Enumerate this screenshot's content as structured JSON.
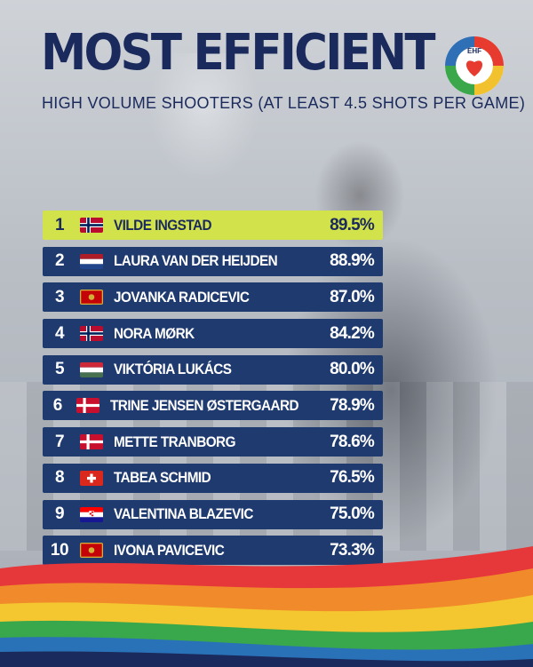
{
  "header": {
    "title": "MOST EFFICIENT",
    "subtitle": "HIGH VOLUME SHOOTERS (AT LEAST 4.5 SHOTS PER GAME)",
    "logo_text": "EHF"
  },
  "colors": {
    "navy": "#1f3a6e",
    "title_navy": "#1b2a5c",
    "highlight": "#d2e24a"
  },
  "ranking": [
    {
      "rank": "1",
      "flag_icon": "norway-flag-icon",
      "name": "VILDE INGSTAD",
      "value": "89.5%"
    },
    {
      "rank": "2",
      "flag_icon": "netherlands-flag-icon",
      "name": "LAURA VAN DER HEIJDEN",
      "value": "88.9%"
    },
    {
      "rank": "3",
      "flag_icon": "montenegro-flag-icon",
      "name": "JOVANKA RADICEVIC",
      "value": "87.0%"
    },
    {
      "rank": "4",
      "flag_icon": "norway-flag-icon",
      "name": "NORA MØRK",
      "value": "84.2%"
    },
    {
      "rank": "5",
      "flag_icon": "hungary-flag-icon",
      "name": "VIKTÓRIA LUKÁCS",
      "value": "80.0%"
    },
    {
      "rank": "6",
      "flag_icon": "denmark-flag-icon",
      "name": "TRINE JENSEN ØSTERGAARD",
      "value": "78.9%"
    },
    {
      "rank": "7",
      "flag_icon": "denmark-flag-icon",
      "name": "METTE TRANBORG",
      "value": "78.6%"
    },
    {
      "rank": "8",
      "flag_icon": "switzerland-flag-icon",
      "name": "TABEA SCHMID",
      "value": "76.5%"
    },
    {
      "rank": "9",
      "flag_icon": "croatia-flag-icon",
      "name": "VALENTINA BLAZEVIC",
      "value": "75.0%"
    },
    {
      "rank": "10",
      "flag_icon": "montenegro-flag-icon",
      "name": "IVONA PAVICEVIC",
      "value": "73.3%"
    }
  ]
}
